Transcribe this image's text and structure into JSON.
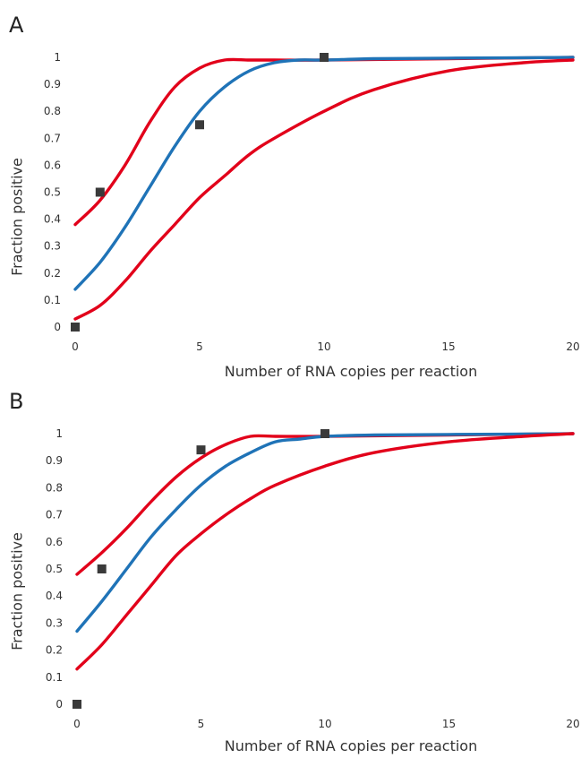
{
  "chart_data": [
    {
      "type": "line",
      "panel_label": "A",
      "xlabel": "Number of RNA copies per reaction",
      "ylabel": "Fraction positive",
      "xlim": [
        0,
        20
      ],
      "ylim": [
        0,
        1
      ],
      "xticks": [
        "0",
        "5",
        "10",
        "15",
        "20"
      ],
      "yticks": [
        "0",
        "0.1",
        "0.2",
        "0.3",
        "0.4",
        "0.5",
        "0.6",
        "0.7",
        "0.8",
        "0.9",
        "1"
      ],
      "grid": false,
      "series": [
        {
          "kind": "line",
          "color": "#e2001a",
          "x": [
            0,
            1,
            2,
            3,
            4,
            5,
            6,
            7,
            8,
            10,
            15,
            20
          ],
          "y": [
            0.38,
            0.47,
            0.6,
            0.76,
            0.89,
            0.96,
            0.99,
            0.99,
            0.99,
            0.99,
            0.995,
            1.0
          ]
        },
        {
          "kind": "line",
          "color": "#1f73b7",
          "x": [
            0,
            1,
            2,
            3,
            4,
            5,
            6,
            7,
            8,
            9,
            10,
            12,
            15,
            20
          ],
          "y": [
            0.14,
            0.24,
            0.37,
            0.52,
            0.67,
            0.8,
            0.89,
            0.95,
            0.98,
            0.99,
            0.99,
            0.995,
            0.997,
            1.0
          ]
        },
        {
          "kind": "line",
          "color": "#e2001a",
          "x": [
            0,
            1,
            2,
            3,
            4,
            5,
            6,
            7,
            8,
            10,
            12,
            15,
            18,
            20
          ],
          "y": [
            0.03,
            0.08,
            0.17,
            0.28,
            0.38,
            0.48,
            0.56,
            0.64,
            0.7,
            0.8,
            0.88,
            0.95,
            0.98,
            0.99
          ]
        },
        {
          "kind": "points",
          "color": "#3a3a3a",
          "x": [
            0,
            1,
            5,
            10
          ],
          "y": [
            0,
            0.5,
            0.75,
            1
          ]
        }
      ]
    },
    {
      "type": "line",
      "panel_label": "B",
      "xlabel": "Number of RNA copies per reaction",
      "ylabel": "Fraction positive",
      "xlim": [
        0,
        20
      ],
      "ylim": [
        0,
        1
      ],
      "xticks": [
        "0",
        "5",
        "10",
        "15",
        "20"
      ],
      "yticks": [
        "0",
        "0.1",
        "0.2",
        "0.3",
        "0.4",
        "0.5",
        "0.6",
        "0.7",
        "0.8",
        "0.9",
        "1"
      ],
      "grid": false,
      "series": [
        {
          "kind": "line",
          "color": "#e2001a",
          "x": [
            0,
            1,
            2,
            3,
            4,
            5,
            6,
            7,
            8,
            10,
            15,
            20
          ],
          "y": [
            0.48,
            0.56,
            0.65,
            0.75,
            0.84,
            0.91,
            0.96,
            0.99,
            0.99,
            0.99,
            0.995,
            1.0
          ]
        },
        {
          "kind": "line",
          "color": "#1f73b7",
          "x": [
            0,
            1,
            2,
            3,
            4,
            5,
            6,
            7,
            8,
            9,
            10,
            12,
            15,
            20
          ],
          "y": [
            0.27,
            0.38,
            0.5,
            0.62,
            0.72,
            0.81,
            0.88,
            0.93,
            0.97,
            0.98,
            0.99,
            0.995,
            0.997,
            1.0
          ]
        },
        {
          "kind": "line",
          "color": "#e2001a",
          "x": [
            0,
            1,
            2,
            3,
            4,
            5,
            6,
            7,
            8,
            10,
            12,
            15,
            18,
            20
          ],
          "y": [
            0.13,
            0.22,
            0.33,
            0.44,
            0.55,
            0.63,
            0.7,
            0.76,
            0.81,
            0.88,
            0.93,
            0.97,
            0.99,
            1.0
          ]
        },
        {
          "kind": "points",
          "color": "#3a3a3a",
          "x": [
            0,
            1,
            5,
            10
          ],
          "y": [
            0,
            0.5,
            0.94,
            1
          ]
        }
      ]
    }
  ]
}
